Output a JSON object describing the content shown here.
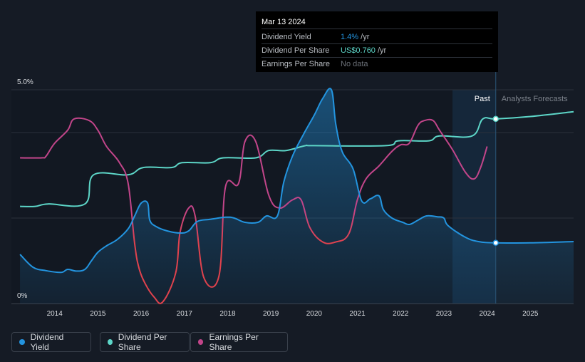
{
  "tooltip": {
    "date": "Mar 13 2024",
    "rows": [
      {
        "label": "Dividend Yield",
        "value": "1.4%",
        "suffix": " /yr"
      },
      {
        "label": "Dividend Per Share",
        "value": "US$0.760",
        "suffix": " /yr"
      },
      {
        "label": "Earnings Per Share",
        "value": "No data",
        "suffix": ""
      }
    ]
  },
  "legend": [
    {
      "label": "Dividend Yield",
      "color": "#2394df"
    },
    {
      "label": "Dividend Per Share",
      "color": "#5dd6c8"
    },
    {
      "label": "Earnings Per Share",
      "color": "#c2458a"
    }
  ],
  "colors": {
    "background": "#151b25",
    "dividend_yield": "#2394df",
    "dividend_per_share": "#5dd6c8",
    "eps_high": "#c2458a",
    "eps_low": "#e0424d",
    "forecast_band": "#16324c"
  },
  "chart_data": {
    "type": "line",
    "title": "",
    "xlabel": "",
    "ylabel": "",
    "xlim": [
      2013.0,
      2026.0
    ],
    "ylim": [
      0,
      5.0
    ],
    "y_ticks": [
      "5.0%",
      "0%"
    ],
    "x_ticks": [
      "2014",
      "2015",
      "2016",
      "2017",
      "2018",
      "2019",
      "2020",
      "2021",
      "2022",
      "2023",
      "2024",
      "2025"
    ],
    "past_label": "Past",
    "forecast_label": "Analysts Forecasts",
    "forecast_start": 2023.2,
    "tooltip_date": 2024.2,
    "series": [
      {
        "name": "Dividend Yield",
        "unit": "%",
        "x": [
          2013.2,
          2013.5,
          2013.8,
          2014.15,
          2014.3,
          2014.5,
          2014.7,
          2014.85,
          2015.0,
          2015.2,
          2015.45,
          2015.7,
          2015.85,
          2016.0,
          2016.15,
          2016.2,
          2016.35,
          2016.6,
          2016.9,
          2017.1,
          2017.3,
          2017.6,
          2017.95,
          2018.15,
          2018.4,
          2018.7,
          2018.9,
          2019.15,
          2019.3,
          2019.5,
          2019.75,
          2020.0,
          2020.2,
          2020.4,
          2020.5,
          2020.65,
          2020.9,
          2021.1,
          2021.3,
          2021.5,
          2021.6,
          2021.8,
          2022.05,
          2022.2,
          2022.4,
          2022.6,
          2022.85,
          2023.0,
          2023.1,
          2023.5,
          2023.8,
          2024.2,
          2025.0,
          2026.0
        ],
        "values": [
          1.15,
          0.85,
          0.77,
          0.73,
          0.8,
          0.76,
          0.8,
          1.0,
          1.2,
          1.35,
          1.5,
          1.75,
          2.05,
          2.35,
          2.35,
          1.95,
          1.8,
          1.7,
          1.65,
          1.7,
          1.92,
          1.97,
          2.02,
          2.0,
          1.9,
          1.9,
          2.05,
          2.05,
          2.85,
          3.45,
          3.95,
          4.4,
          4.8,
          5.0,
          4.2,
          3.55,
          3.15,
          2.4,
          2.45,
          2.52,
          2.2,
          2.0,
          1.9,
          1.85,
          1.95,
          2.05,
          2.03,
          2.0,
          1.82,
          1.55,
          1.45,
          1.42,
          1.42,
          1.45
        ]
      },
      {
        "name": "Dividend Per Share",
        "unit": "US$",
        "x": [
          2013.2,
          2013.55,
          2013.85,
          2014.7,
          2014.9,
          2015.7,
          2016.05,
          2016.7,
          2016.95,
          2017.6,
          2017.9,
          2018.65,
          2018.95,
          2019.35,
          2019.8,
          2020.0,
          2021.65,
          2021.95,
          2022.65,
          2022.9,
          2023.65,
          2023.9,
          2024.2,
          2025.0,
          2026.0
        ],
        "values": [
          0.4,
          0.4,
          0.41,
          0.41,
          0.53,
          0.53,
          0.56,
          0.56,
          0.58,
          0.58,
          0.6,
          0.6,
          0.63,
          0.63,
          0.65,
          0.65,
          0.65,
          0.67,
          0.67,
          0.69,
          0.69,
          0.76,
          0.76,
          0.77,
          0.79
        ]
      },
      {
        "name": "Earnings Per Share",
        "unit": "US$",
        "x": [
          2013.2,
          2013.7,
          2013.8,
          2014.0,
          2014.3,
          2014.45,
          2014.8,
          2015.0,
          2015.2,
          2015.5,
          2015.7,
          2015.85,
          2015.95,
          2016.1,
          2016.3,
          2016.5,
          2016.8,
          2016.9,
          2017.1,
          2017.25,
          2017.45,
          2017.8,
          2017.95,
          2018.25,
          2018.4,
          2018.65,
          2018.95,
          2019.2,
          2019.5,
          2019.7,
          2019.9,
          2020.2,
          2020.5,
          2020.8,
          2021.0,
          2021.2,
          2021.5,
          2021.8,
          2022.0,
          2022.2,
          2022.4,
          2022.55,
          2022.75,
          2022.9,
          2023.2,
          2023.5,
          2023.7,
          2023.85,
          2024.0
        ],
        "values": [
          0.88,
          0.88,
          0.89,
          0.97,
          1.05,
          1.12,
          1.11,
          1.05,
          0.95,
          0.85,
          0.72,
          0.35,
          0.2,
          0.1,
          0.02,
          -0.01,
          0.17,
          0.42,
          0.57,
          0.52,
          0.14,
          0.15,
          0.7,
          0.72,
          0.98,
          0.98,
          0.65,
          0.57,
          0.62,
          0.62,
          0.45,
          0.36,
          0.36,
          0.41,
          0.62,
          0.75,
          0.83,
          0.92,
          0.96,
          0.97,
          1.08,
          1.11,
          1.11,
          1.05,
          0.93,
          0.79,
          0.75,
          0.82,
          0.95
        ]
      }
    ]
  }
}
